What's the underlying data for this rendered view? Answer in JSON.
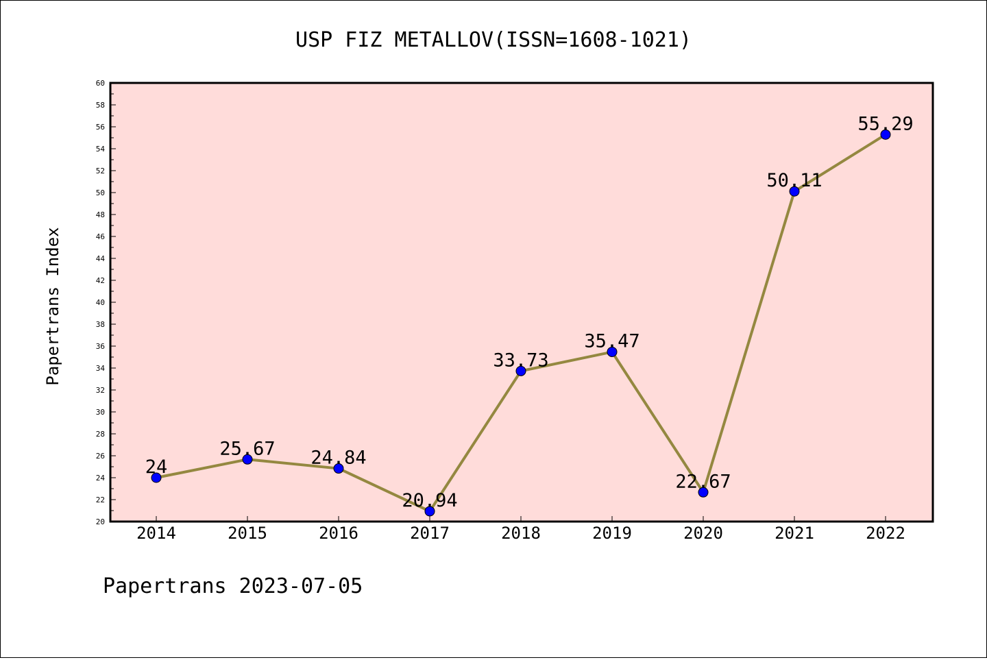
{
  "chart_data": {
    "type": "line",
    "title": "USP FIZ METALLOV(ISSN=1608-1021)",
    "ylabel": "Papertrans Index",
    "xlabel": "",
    "categories": [
      "2014",
      "2015",
      "2016",
      "2017",
      "2018",
      "2019",
      "2020",
      "2021",
      "2022"
    ],
    "series": [
      {
        "values": [
          24,
          25.67,
          24.84,
          20.94,
          33.73,
          35.47,
          22.67,
          50.11,
          55.29
        ],
        "labels": [
          "24",
          "25.67",
          "24.84",
          "20.94",
          "33.73",
          "35.47",
          "22.67",
          "50.11",
          "55.29"
        ]
      }
    ],
    "ylim": [
      20,
      60
    ],
    "ytick_step": 2,
    "grid": false,
    "legend": "none",
    "colors": {
      "plot_background": "#ffdcda",
      "line": "#948840",
      "marker": "#0000ff"
    }
  },
  "footer": "Papertrans 2023-07-05"
}
